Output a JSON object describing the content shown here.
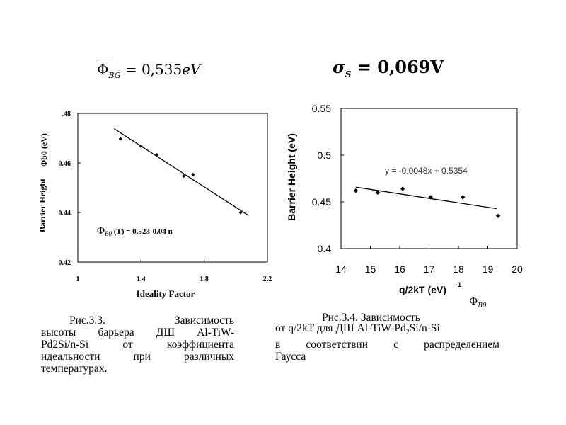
{
  "formulas": {
    "phi_bg": {
      "symbol": "Φ",
      "subscript": "BG",
      "rhs": "= 0,535",
      "unit": "eV"
    },
    "sigma_s": {
      "symbol": "σ",
      "subscript": "S",
      "rhs": "= 0,069V"
    }
  },
  "chart_data": [
    {
      "type": "scatter",
      "title": "",
      "xlabel": "Ideality Factor",
      "ylabel": "Barrier Height",
      "ylabel_symbol": "Φb0 (eV)",
      "xlim": [
        1.0,
        2.2
      ],
      "ylim": [
        0.42,
        0.48
      ],
      "xticks": [
        "1",
        "1.4",
        "1.8",
        "2.2"
      ],
      "yticks": [
        ".48",
        "0.46",
        "0.44",
        "0.42"
      ],
      "points": [
        {
          "x": 1.27,
          "y": 0.4697
        },
        {
          "x": 1.4,
          "y": 0.4667
        },
        {
          "x": 1.5,
          "y": 0.4633
        },
        {
          "x": 1.67,
          "y": 0.4547
        },
        {
          "x": 1.73,
          "y": 0.4553
        },
        {
          "x": 2.03,
          "y": 0.44
        }
      ],
      "fit": {
        "x": [
          1.23,
          2.08
        ],
        "y": [
          0.4738,
          0.4388
        ]
      },
      "annotation": {
        "symbol": "Φ",
        "subscript": "B0",
        "text": "(T) = 0.523-0.04 n"
      },
      "grid": false
    },
    {
      "type": "scatter",
      "title": "",
      "xlabel": "q/2kT (eV)",
      "xlabel_sup": "-1",
      "ylabel": "Barrier Height (eV)",
      "xlim": [
        14,
        20
      ],
      "ylim": [
        0.4,
        0.55
      ],
      "xticks": [
        "14",
        "15",
        "16",
        "17",
        "18",
        "19",
        "20"
      ],
      "yticks": [
        "0.55",
        "0.5",
        "0.45",
        "0.4"
      ],
      "points": [
        {
          "x": 14.5,
          "y": 0.462
        },
        {
          "x": 15.25,
          "y": 0.46
        },
        {
          "x": 16.1,
          "y": 0.464
        },
        {
          "x": 17.05,
          "y": 0.455
        },
        {
          "x": 18.15,
          "y": 0.455
        },
        {
          "x": 19.35,
          "y": 0.435
        }
      ],
      "fit": {
        "x": [
          14.5,
          19.3
        ],
        "y": [
          0.4658,
          0.4427
        ]
      },
      "equation": "y = -0.0048x + 0.5354",
      "grid": false
    }
  ],
  "corner_symbol": {
    "symbol": "Φ",
    "subscript": "B0"
  },
  "captions": {
    "left": {
      "line1": [
        "Рис.3.3.",
        "Зависимость"
      ],
      "line2": [
        "высоты",
        "барьера",
        "ДШ",
        "Al-TiW-"
      ],
      "line3": [
        "Pd2Si/n-Si",
        "от",
        "коэффициента"
      ],
      "line4": [
        "идеальности",
        "при",
        "различных"
      ],
      "line5": "температурах."
    },
    "right": {
      "line1": "Рис.3.4. Зависимость",
      "line2_pre": "от  q/2kT для ДШ Al-TiW-Pd",
      "line2_sub": "2",
      "line2_post": "Si/n-Si",
      "line3": [
        "в",
        "соответствии",
        "с",
        "распределением"
      ],
      "line4": "Гаусса"
    }
  }
}
